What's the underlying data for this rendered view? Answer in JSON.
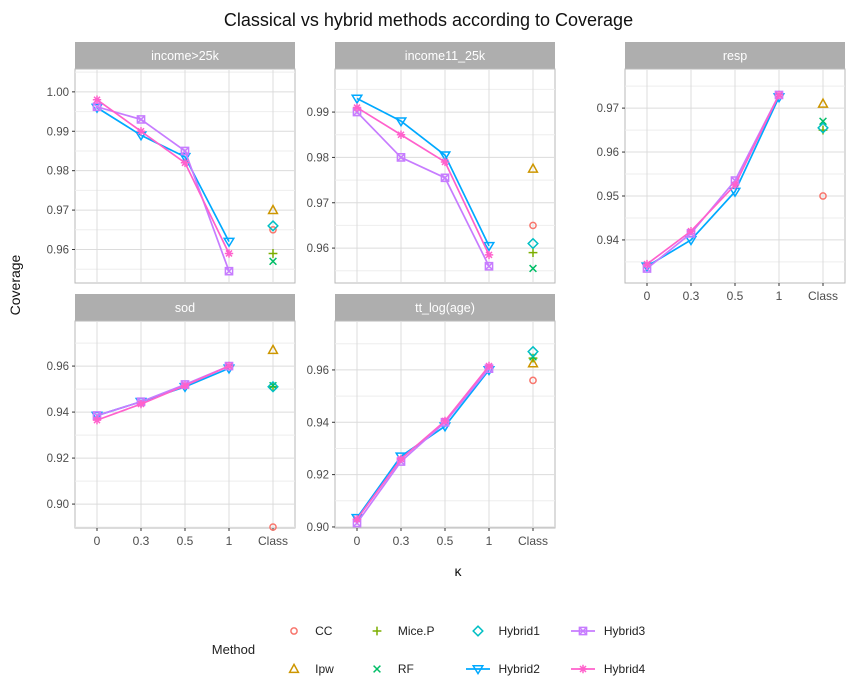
{
  "title": "Classical vs hybrid methods according to Coverage",
  "axes": {
    "y_label": "Coverage",
    "x_label": "κ"
  },
  "legend_title": "Method",
  "methods": [
    {
      "name": "CC",
      "color": "#F8766D",
      "shape": "circle-open",
      "has_line": false
    },
    {
      "name": "Ipw",
      "color": "#CD9600",
      "shape": "triangle-open",
      "has_line": false
    },
    {
      "name": "Mice.P",
      "color": "#7CAE00",
      "shape": "plus",
      "has_line": false
    },
    {
      "name": "RF",
      "color": "#00BE67",
      "shape": "x",
      "has_line": false
    },
    {
      "name": "Hybrid1",
      "color": "#00BFC4",
      "shape": "diamond-open",
      "has_line": false
    },
    {
      "name": "Hybrid2",
      "color": "#00A9FF",
      "shape": "triangle-down-open",
      "has_line": true
    },
    {
      "name": "Hybrid3",
      "color": "#C77CFF",
      "shape": "square-cross",
      "has_line": true
    },
    {
      "name": "Hybrid4",
      "color": "#FF61CC",
      "shape": "asterisk",
      "has_line": true
    }
  ],
  "chart_data": [
    {
      "type": "line",
      "title": "income>25k",
      "x_categories": [
        "0",
        "0.3",
        "0.5",
        "1",
        "Class"
      ],
      "kappa_categories": [
        "0",
        "0.3",
        "0.5",
        "1"
      ],
      "yticks": [
        0.96,
        0.97,
        0.98,
        0.99,
        1.0
      ],
      "ylim": [
        0.9515,
        1.0058
      ],
      "series": [
        {
          "name": "Hybrid2",
          "values": [
            0.996,
            0.989,
            0.9835,
            0.962
          ]
        },
        {
          "name": "Hybrid3",
          "values": [
            0.9962,
            0.993,
            0.985,
            0.9545
          ]
        },
        {
          "name": "Hybrid4",
          "values": [
            0.998,
            0.99,
            0.982,
            0.959
          ]
        }
      ],
      "class_points": [
        {
          "name": "CC",
          "value": 0.965
        },
        {
          "name": "Ipw",
          "value": 0.97
        },
        {
          "name": "Mice.P",
          "value": 0.959
        },
        {
          "name": "RF",
          "value": 0.957
        },
        {
          "name": "Hybrid1",
          "value": 0.966
        }
      ]
    },
    {
      "type": "line",
      "title": "income11_25k",
      "x_categories": [
        "0",
        "0.3",
        "0.5",
        "1",
        "Class"
      ],
      "kappa_categories": [
        "0",
        "0.3",
        "0.5",
        "1"
      ],
      "yticks": [
        0.96,
        0.97,
        0.98,
        0.99
      ],
      "ylim": [
        0.9523,
        0.9995
      ],
      "series": [
        {
          "name": "Hybrid2",
          "values": [
            0.993,
            0.988,
            0.9805,
            0.9605
          ]
        },
        {
          "name": "Hybrid3",
          "values": [
            0.99,
            0.98,
            0.9755,
            0.956
          ]
        },
        {
          "name": "Hybrid4",
          "values": [
            0.991,
            0.985,
            0.979,
            0.9585
          ]
        }
      ],
      "class_points": [
        {
          "name": "CC",
          "value": 0.965
        },
        {
          "name": "Ipw",
          "value": 0.9775
        },
        {
          "name": "Mice.P",
          "value": 0.959
        },
        {
          "name": "RF",
          "value": 0.9555
        },
        {
          "name": "Hybrid1",
          "value": 0.961
        }
      ]
    },
    {
      "type": "line",
      "title": "resp",
      "x_categories": [
        "0",
        "0.3",
        "0.5",
        "1",
        "Class"
      ],
      "kappa_categories": [
        "0",
        "0.3",
        "0.5",
        "1"
      ],
      "yticks": [
        0.94,
        0.95,
        0.96,
        0.97
      ],
      "ylim": [
        0.9302,
        0.9789
      ],
      "series": [
        {
          "name": "Hybrid2",
          "values": [
            0.934,
            0.94,
            0.951,
            0.9725
          ]
        },
        {
          "name": "Hybrid3",
          "values": [
            0.9335,
            0.9415,
            0.9535,
            0.973
          ]
        },
        {
          "name": "Hybrid4",
          "values": [
            0.9345,
            0.942,
            0.9525,
            0.973
          ]
        }
      ],
      "class_points": [
        {
          "name": "CC",
          "value": 0.95
        },
        {
          "name": "Ipw",
          "value": 0.971
        },
        {
          "name": "Mice.P",
          "value": 0.965
        },
        {
          "name": "RF",
          "value": 0.967
        },
        {
          "name": "Hybrid1",
          "value": 0.9655
        }
      ]
    },
    {
      "type": "line",
      "title": "sod",
      "x_categories": [
        "0",
        "0.3",
        "0.5",
        "1",
        "Class"
      ],
      "kappa_categories": [
        "0",
        "0.3",
        "0.5",
        "1"
      ],
      "yticks": [
        0.9,
        0.92,
        0.94,
        0.96
      ],
      "ylim": [
        0.8896,
        0.9796
      ],
      "series": [
        {
          "name": "Hybrid2",
          "values": [
            0.9385,
            0.9445,
            0.951,
            0.959
          ]
        },
        {
          "name": "Hybrid3",
          "values": [
            0.9385,
            0.9445,
            0.952,
            0.96
          ]
        },
        {
          "name": "Hybrid4",
          "values": [
            0.9365,
            0.9435,
            0.9515,
            0.96
          ]
        }
      ],
      "class_points": [
        {
          "name": "CC",
          "value": 0.89
        },
        {
          "name": "Ipw",
          "value": 0.967
        },
        {
          "name": "Mice.P",
          "value": 0.951
        },
        {
          "name": "RF",
          "value": 0.9515
        },
        {
          "name": "Hybrid1",
          "value": 0.951
        }
      ]
    },
    {
      "type": "line",
      "title": "tt_log(age)",
      "x_categories": [
        "0",
        "0.3",
        "0.5",
        "1",
        "Class"
      ],
      "kappa_categories": [
        "0",
        "0.3",
        "0.5",
        "1"
      ],
      "yticks": [
        0.9,
        0.92,
        0.94,
        0.96
      ],
      "ylim": [
        0.8996,
        0.9787
      ],
      "series": [
        {
          "name": "Hybrid2",
          "values": [
            0.9035,
            0.927,
            0.9385,
            0.96
          ]
        },
        {
          "name": "Hybrid3",
          "values": [
            0.9015,
            0.925,
            0.94,
            0.9605
          ]
        },
        {
          "name": "Hybrid4",
          "values": [
            0.903,
            0.926,
            0.9405,
            0.9615
          ]
        }
      ],
      "class_points": [
        {
          "name": "CC",
          "value": 0.956
        },
        {
          "name": "Ipw",
          "value": 0.9625
        },
        {
          "name": "Mice.P",
          "value": 0.9645
        },
        {
          "name": "RF",
          "value": 0.965
        },
        {
          "name": "Hybrid1",
          "value": 0.967
        }
      ]
    }
  ],
  "style_colors": {
    "strip_background": "#AEAEAE",
    "strip_text": "#FFFFFF",
    "grid_major": "#DCDCDC",
    "grid_minor": "#EEEEEE",
    "panel_border": "#B9B9B9",
    "tick_mark": "#333333",
    "tick_label": "#4D4D4D"
  }
}
